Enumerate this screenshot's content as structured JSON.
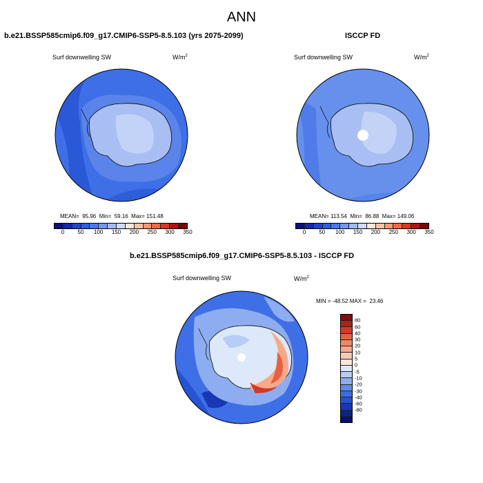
{
  "figure_title": "ANN",
  "panels": [
    {
      "title": "b.e21.BSSP585cmip6.f09_g17.CMIP6-SSP5-8.5.103 (yrs 2075-2099)",
      "field": "Surf downwelling SW",
      "units_base": "W/m",
      "units_exp": "2",
      "stats": "MEAN=  95.96  Min=  59.16  Max= 151.48",
      "colorbar": {
        "colors": [
          "#0a0f7a",
          "#1428a8",
          "#1e46c8",
          "#2d5fde",
          "#4a78e8",
          "#7396ee",
          "#a3b9f3",
          "#cddcf8",
          "#fde6d6",
          "#fbc3a5",
          "#f59a72",
          "#ec6a46",
          "#d63a22",
          "#ad1515",
          "#780606"
        ],
        "labels": [
          "0",
          "50",
          "100",
          "150",
          "200",
          "250",
          "300",
          "350"
        ]
      }
    },
    {
      "title": "ISCCP FD",
      "field": "Surf downwelling SW",
      "units_base": "W/m",
      "units_exp": "2",
      "stats": "MEAN= 113.54  Min=  86.88  Max= 149.06",
      "colorbar": {
        "colors": [
          "#0a0f7a",
          "#1428a8",
          "#1e46c8",
          "#2d5fde",
          "#4a78e8",
          "#7396ee",
          "#a3b9f3",
          "#cddcf8",
          "#fde6d6",
          "#fbc3a5",
          "#f59a72",
          "#ec6a46",
          "#d63a22",
          "#ad1515",
          "#780606"
        ],
        "labels": [
          "0",
          "50",
          "100",
          "150",
          "200",
          "250",
          "300",
          "350"
        ]
      }
    },
    {
      "title": "b.e21.BSSP585cmip6.f09_g17.CMIP6-SSP5-8.5.103 - ISCCP FD",
      "field": "Surf downwelling SW",
      "units_base": "W/m",
      "units_exp": "2",
      "stats": "MIN = -48.52 MAX =  23.46",
      "colorbar": {
        "colors": [
          "#8a0a0a",
          "#b31f17",
          "#d23a26",
          "#e8613f",
          "#f4875f",
          "#f8a989",
          "#fbc9b3",
          "#fde6da",
          "#dde8fa",
          "#b8cdf5",
          "#8eadf0",
          "#5f8bea",
          "#3b6de0",
          "#2454d2",
          "#1638b2",
          "#0c2098",
          "#051070"
        ],
        "labels": [
          "80",
          "60",
          "40",
          "30",
          "20",
          "10",
          "5",
          "0",
          "-5",
          "-10",
          "-20",
          "-30",
          "-40",
          "-60",
          "-80"
        ]
      }
    }
  ],
  "chart_data": [
    {
      "type": "heatmap",
      "title": "b.e21.BSSP585cmip6.f09_g17.CMIP6-SSP5-8.5.103 (yrs 2075-2099)",
      "variable": "Surf downwelling SW",
      "units": "W/m2",
      "projection": "polar stereographic (south pole)",
      "mean": 95.96,
      "min": 59.16,
      "max": 151.48,
      "colorbar_levels": [
        0,
        25,
        50,
        75,
        100,
        125,
        150,
        175,
        200,
        225,
        250,
        275,
        300,
        325,
        350
      ],
      "colorbar_tick_labels": [
        "0",
        "50",
        "100",
        "150",
        "200",
        "250",
        "300",
        "350"
      ]
    },
    {
      "type": "heatmap",
      "title": "ISCCP FD",
      "variable": "Surf downwelling SW",
      "units": "W/m2",
      "projection": "polar stereographic (south pole)",
      "mean": 113.54,
      "min": 86.88,
      "max": 149.06,
      "colorbar_levels": [
        0,
        25,
        50,
        75,
        100,
        125,
        150,
        175,
        200,
        225,
        250,
        275,
        300,
        325,
        350
      ],
      "colorbar_tick_labels": [
        "0",
        "50",
        "100",
        "150",
        "200",
        "250",
        "300",
        "350"
      ]
    },
    {
      "type": "heatmap",
      "title": "b.e21.BSSP585cmip6.f09_g17.CMIP6-SSP5-8.5.103 - ISCCP FD",
      "variable": "Surf downwelling SW",
      "units": "W/m2",
      "projection": "polar stereographic (south pole)",
      "min": -48.52,
      "max": 23.46,
      "colorbar_levels": [
        80,
        60,
        40,
        30,
        20,
        10,
        5,
        0,
        -5,
        -10,
        -20,
        -30,
        -40,
        -60,
        -80
      ]
    }
  ]
}
